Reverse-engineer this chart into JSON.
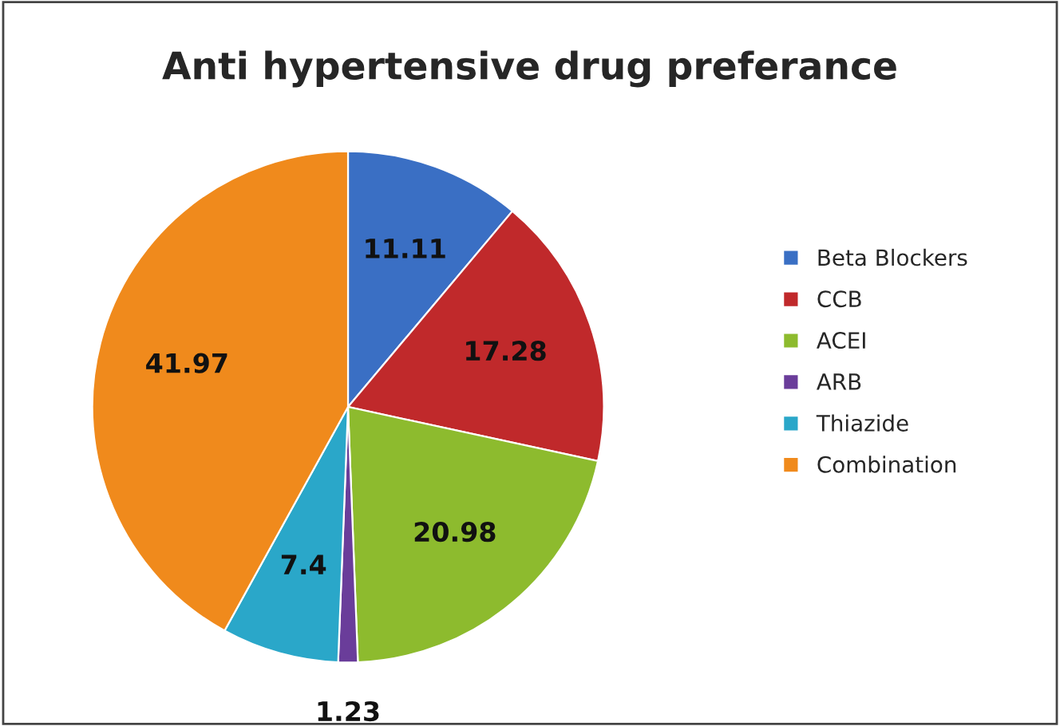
{
  "chart_data": {
    "type": "pie",
    "title": "Anti hypertensive drug preferance",
    "categories": [
      "Beta Blockers",
      "CCB",
      "ACEI",
      "ARB",
      "Thiazide",
      "Combination"
    ],
    "values": [
      11.11,
      17.28,
      20.98,
      1.23,
      7.4,
      41.97
    ],
    "colors": [
      "#3a6fc4",
      "#c0292b",
      "#8dbb2e",
      "#6a3d9a",
      "#2aa7c9",
      "#f08a1c"
    ],
    "data_labels": true,
    "legend": "right"
  }
}
